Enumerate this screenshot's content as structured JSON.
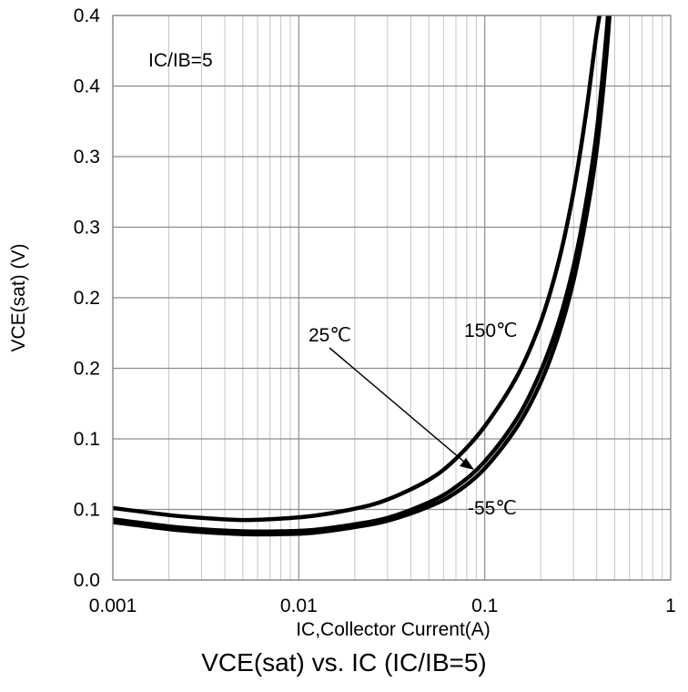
{
  "chart_data": {
    "type": "line",
    "title": "VCE(sat) vs. IC (IC/IB=5)",
    "xlabel": "IC,Collector Current(A)",
    "ylabel": "VCE(sat) (V)",
    "x_scale": "log",
    "xlim": [
      0.001,
      1
    ],
    "ylim": [
      0.0,
      0.4
    ],
    "x_ticks": [
      {
        "value": 0.001,
        "label": "0.001"
      },
      {
        "value": 0.01,
        "label": "0.01"
      },
      {
        "value": 0.1,
        "label": "0.1"
      },
      {
        "value": 1,
        "label": "1"
      }
    ],
    "y_ticks": [
      {
        "value": 0.0,
        "label": "0.0"
      },
      {
        "value": 0.05,
        "label": "0.1"
      },
      {
        "value": 0.1,
        "label": "0.1"
      },
      {
        "value": 0.15,
        "label": "0.2"
      },
      {
        "value": 0.2,
        "label": "0.2"
      },
      {
        "value": 0.25,
        "label": "0.3"
      },
      {
        "value": 0.3,
        "label": "0.3"
      },
      {
        "value": 0.35,
        "label": "0.4"
      },
      {
        "value": 0.4,
        "label": "0.4"
      }
    ],
    "grid": true,
    "series": [
      {
        "name": "150℃",
        "x": [
          0.001,
          0.002,
          0.003,
          0.005,
          0.008,
          0.012,
          0.02,
          0.03,
          0.05,
          0.07,
          0.1,
          0.15,
          0.2,
          0.25,
          0.3,
          0.35,
          0.4,
          0.43,
          0.45
        ],
        "y": [
          0.051,
          0.046,
          0.044,
          0.0425,
          0.0435,
          0.0455,
          0.0505,
          0.057,
          0.071,
          0.086,
          0.109,
          0.145,
          0.183,
          0.226,
          0.275,
          0.33,
          0.388,
          0.41,
          0.42
        ]
      },
      {
        "name": "25℃",
        "x": [
          0.001,
          0.002,
          0.003,
          0.005,
          0.008,
          0.012,
          0.02,
          0.03,
          0.05,
          0.07,
          0.1,
          0.15,
          0.2,
          0.25,
          0.3,
          0.35,
          0.4,
          0.45,
          0.47
        ],
        "y": [
          0.043,
          0.038,
          0.036,
          0.0345,
          0.0345,
          0.0355,
          0.0395,
          0.044,
          0.055,
          0.066,
          0.084,
          0.115,
          0.148,
          0.183,
          0.222,
          0.267,
          0.318,
          0.385,
          0.42
        ]
      },
      {
        "name": "-55℃",
        "x": [
          0.001,
          0.002,
          0.003,
          0.005,
          0.008,
          0.012,
          0.02,
          0.03,
          0.05,
          0.07,
          0.1,
          0.15,
          0.2,
          0.25,
          0.3,
          0.35,
          0.4,
          0.45,
          0.48
        ],
        "y": [
          0.041,
          0.036,
          0.034,
          0.0325,
          0.0325,
          0.0335,
          0.0375,
          0.042,
          0.052,
          0.062,
          0.079,
          0.109,
          0.14,
          0.174,
          0.212,
          0.256,
          0.305,
          0.37,
          0.42
        ]
      }
    ],
    "annotations": {
      "condition": "IC/IB=5",
      "label_150": "150℃",
      "label_25": "25℃",
      "label_m55": "-55℃"
    }
  }
}
